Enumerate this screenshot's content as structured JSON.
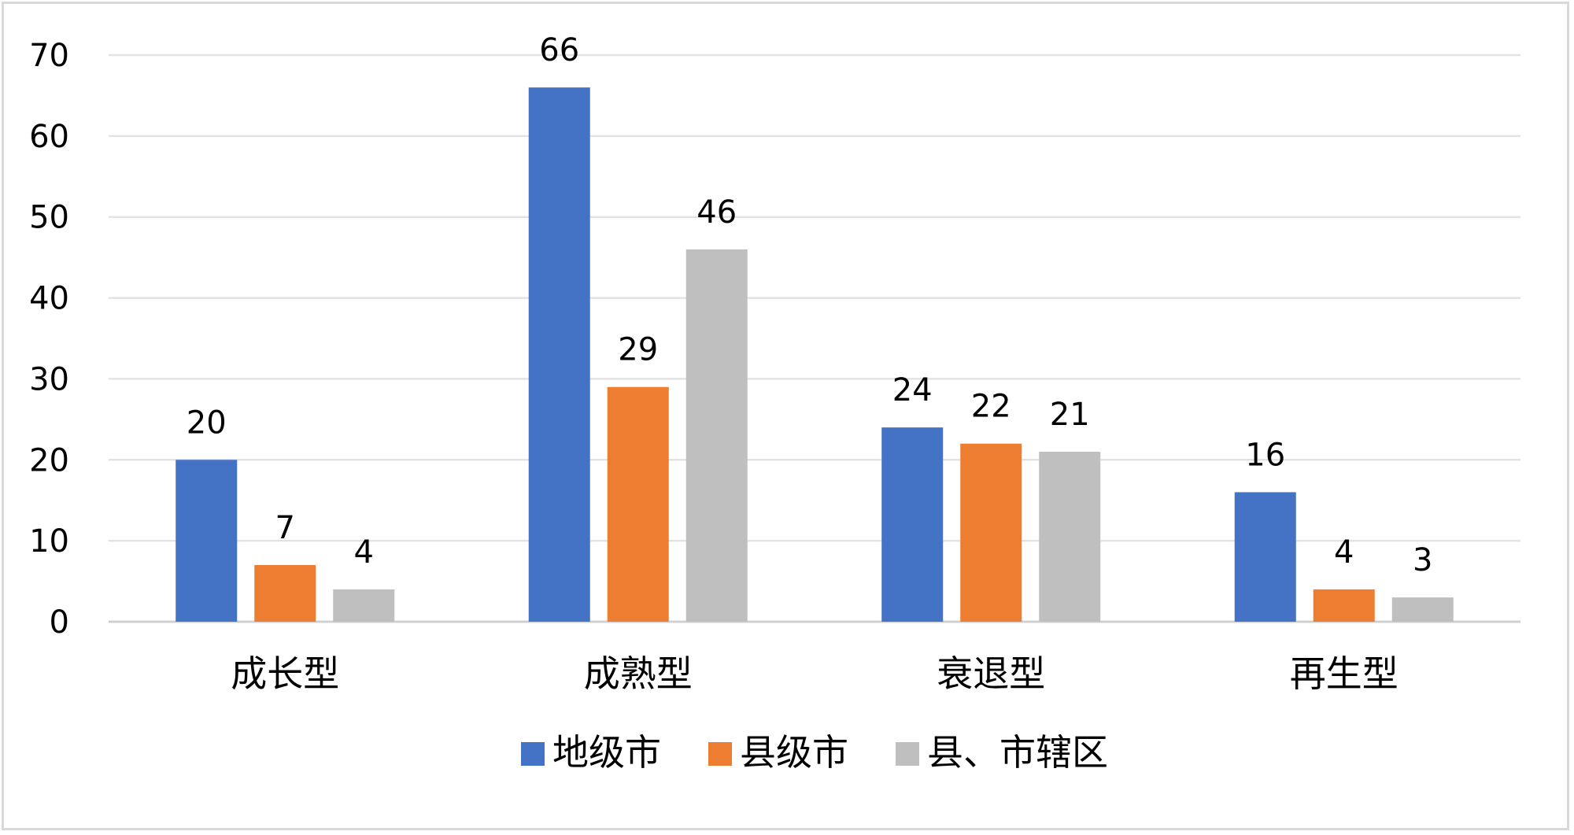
{
  "chart_data": {
    "type": "bar",
    "title": "",
    "xlabel": "",
    "ylabel": "",
    "categories": [
      "成长型",
      "成熟型",
      "衰退型",
      "再生型"
    ],
    "series": [
      {
        "name": "地级市",
        "color": "#4472C4",
        "values": [
          20,
          66,
          24,
          16
        ]
      },
      {
        "name": "县级市",
        "color": "#ED7D31",
        "values": [
          7,
          29,
          22,
          4
        ]
      },
      {
        "name": "县、市辖区",
        "color": "#BFBFBF",
        "values": [
          4,
          46,
          21,
          3
        ]
      }
    ],
    "ylim": [
      0,
      70
    ],
    "yticks": [
      0,
      10,
      20,
      30,
      40,
      50,
      60,
      70
    ],
    "grid": true,
    "legend_position": "bottom",
    "data_labels": true
  }
}
